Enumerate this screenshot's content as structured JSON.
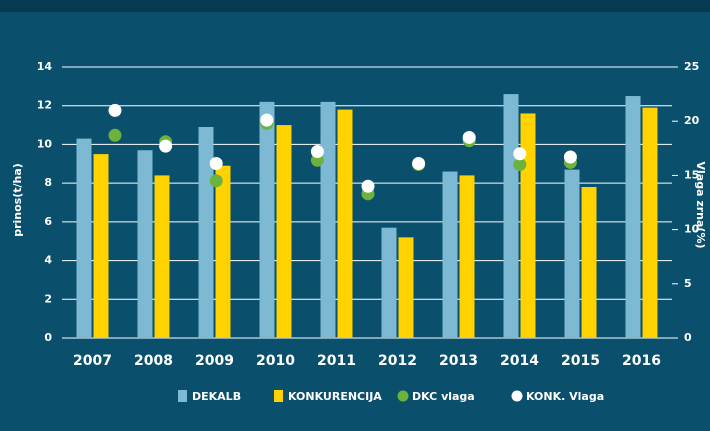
{
  "chart_data": {
    "type": "bar",
    "categories": [
      "2007",
      "2008",
      "2009",
      "2010",
      "2011",
      "2012",
      "2013",
      "2014",
      "2015",
      "2016"
    ],
    "series": [
      {
        "name": "DEKALB",
        "type": "bar",
        "color": "#7db9d2",
        "values": [
          10.3,
          9.7,
          10.9,
          12.2,
          12.2,
          5.7,
          8.6,
          12.6,
          8.7,
          12.5
        ]
      },
      {
        "name": "KONKURENCIJA",
        "type": "bar",
        "color": "#ffd200",
        "values": [
          9.5,
          8.4,
          8.9,
          11.0,
          11.8,
          5.2,
          8.4,
          11.6,
          7.8,
          11.9
        ]
      },
      {
        "name": "DKC vlaga",
        "type": "scatter",
        "axis": "y2",
        "color": "#6cb33e",
        "values": [
          18.7,
          18.1,
          14.5,
          19.8,
          16.4,
          13.3,
          16.0,
          18.2,
          16.0,
          16.2
        ]
      },
      {
        "name": "KONK. Vlaga",
        "type": "scatter",
        "axis": "y2",
        "color": "#ffffff",
        "values": [
          21.0,
          17.7,
          16.1,
          20.1,
          17.2,
          14.0,
          16.1,
          18.5,
          17.0,
          16.7
        ]
      }
    ],
    "ylabel": "prinos(t/ha)",
    "y2label": "Vlaga zrna(%)",
    "ylim": [
      0,
      14
    ],
    "yticks": [
      0,
      2,
      4,
      6,
      8,
      10,
      12,
      14
    ],
    "y2lim": [
      0,
      25
    ],
    "y2ticks": [
      0,
      5,
      10,
      15,
      20,
      25
    ],
    "grid": true,
    "legend": "bottom"
  }
}
